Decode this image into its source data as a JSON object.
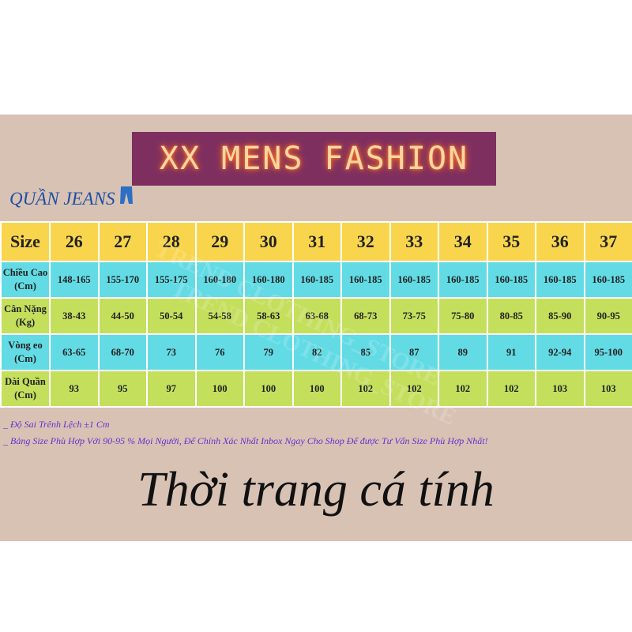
{
  "banner": {
    "title": "XX MENS FASHION"
  },
  "section_title": "QUẦN JEANS",
  "watermark": [
    "TREND CLOTHING_STORE",
    "TREND CLOTHING_STORE"
  ],
  "table": {
    "header": [
      "Size",
      "26",
      "27",
      "28",
      "29",
      "30",
      "31",
      "32",
      "33",
      "34",
      "35",
      "36",
      "37"
    ],
    "rows": [
      {
        "label": [
          "Chiều Cao",
          "(Cm)"
        ],
        "cells": [
          "148-165",
          "155-170",
          "155-175",
          "160-180",
          "160-180",
          "160-185",
          "160-185",
          "160-185",
          "160-185",
          "160-185",
          "160-185",
          "160-185"
        ]
      },
      {
        "label": [
          "Cân Nặng",
          "(Kg)"
        ],
        "cells": [
          "38-43",
          "44-50",
          "50-54",
          "54-58",
          "58-63",
          "63-68",
          "68-73",
          "73-75",
          "75-80",
          "80-85",
          "85-90",
          "90-95"
        ]
      },
      {
        "label": [
          "Vòng eo",
          "(Cm)"
        ],
        "cells": [
          "63-65",
          "68-70",
          "73",
          "76",
          "79",
          "82",
          "85",
          "87",
          "89",
          "91",
          "92-94",
          "95-100"
        ]
      },
      {
        "label": [
          "Dài Quần",
          "(Cm)"
        ],
        "cells": [
          "93",
          "95",
          "97",
          "100",
          "100",
          "100",
          "102",
          "102",
          "102",
          "102",
          "103",
          "103"
        ]
      }
    ]
  },
  "notes": [
    "_ Độ Sai Trênh Lệch ±1 Cm",
    "_ Bảng Size Phù Hợp Với 90-95 % Mọi Người, Để Chính Xác Nhất Inbox Ngay Cho Shop Để được Tư Vấn Size Phù Hợp Nhất!"
  ],
  "slogan": "Thời trang cá tính"
}
